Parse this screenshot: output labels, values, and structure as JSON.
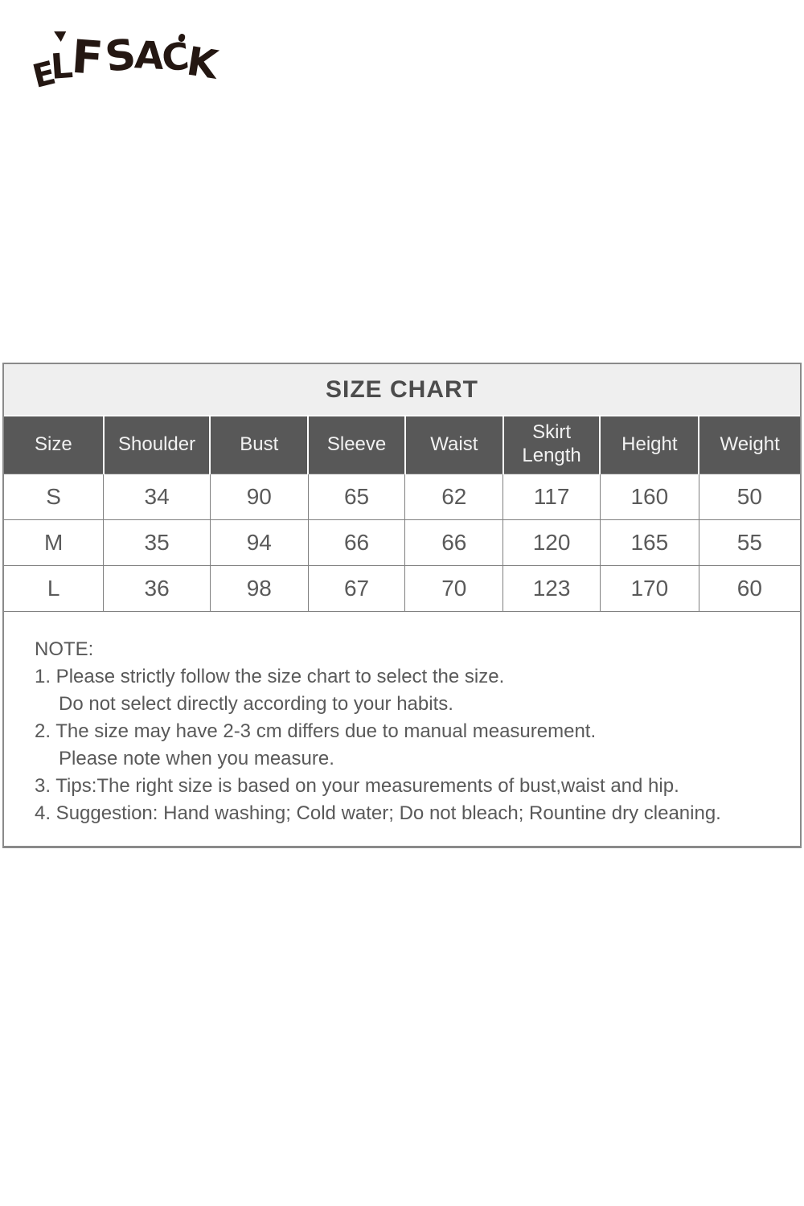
{
  "logo": {
    "text": "ELF SACK"
  },
  "size_chart": {
    "title": "SIZE CHART",
    "columns": [
      "Size",
      "Shoulder",
      "Bust",
      "Sleeve",
      "Waist",
      "Skirt Length",
      "Height",
      "Weight"
    ],
    "rows": [
      [
        "S",
        "34",
        "90",
        "65",
        "62",
        "117",
        "160",
        "50"
      ],
      [
        "M",
        "35",
        "94",
        "66",
        "66",
        "120",
        "165",
        "55"
      ],
      [
        "L",
        "36",
        "98",
        "67",
        "70",
        "123",
        "170",
        "60"
      ]
    ]
  },
  "notes": {
    "heading": "NOTE:",
    "lines": [
      "1. Please strictly follow the size chart to select the size.",
      "Do not select directly according to your habits.",
      "2. The size may have 2-3 cm differs due to manual measurement.",
      "Please note when you measure.",
      "3. Tips:The right size is based on your measurements of bust,waist and hip.",
      "4. Suggestion: Hand washing; Cold water; Do not bleach; Rountine dry cleaning."
    ]
  },
  "colors": {
    "header_background": "#585858",
    "title_background": "#efefef",
    "border": "#7f7f7f",
    "text": "#595959",
    "logo": "#241712"
  }
}
